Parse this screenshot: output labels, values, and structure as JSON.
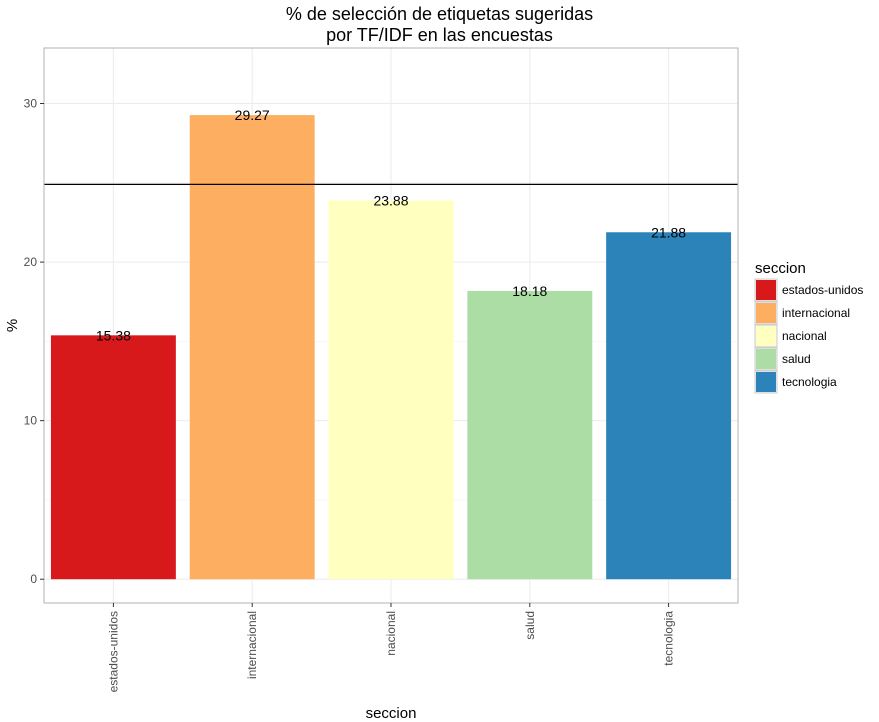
{
  "chart_data": {
    "type": "bar",
    "title": "% de selección de etiquetas sugeridas",
    "subtitle": "por TF/IDF en las encuestas",
    "xlabel": "seccion",
    "ylabel": "%",
    "categories": [
      "estados-unidos",
      "internacional",
      "nacional",
      "salud",
      "tecnologia"
    ],
    "values": [
      15.38,
      29.27,
      23.88,
      18.18,
      21.88
    ],
    "value_labels": [
      "15.38",
      "29.27",
      "23.88",
      "18.18",
      "21.88"
    ],
    "colors": [
      "#D7191C",
      "#FDAE61",
      "#FFFFBF",
      "#ABDDA4",
      "#2B83BA"
    ],
    "ylim": [
      -1.5,
      33.5
    ],
    "yticks": [
      0,
      10,
      20,
      30
    ],
    "ytick_labels": [
      "0",
      "10",
      "20",
      "30"
    ],
    "hline": 24.9,
    "grid": true,
    "legend": {
      "title": "seccion",
      "position": "right",
      "entries": [
        "estados-unidos",
        "internacional",
        "nacional",
        "salud",
        "tecnologia"
      ]
    }
  }
}
